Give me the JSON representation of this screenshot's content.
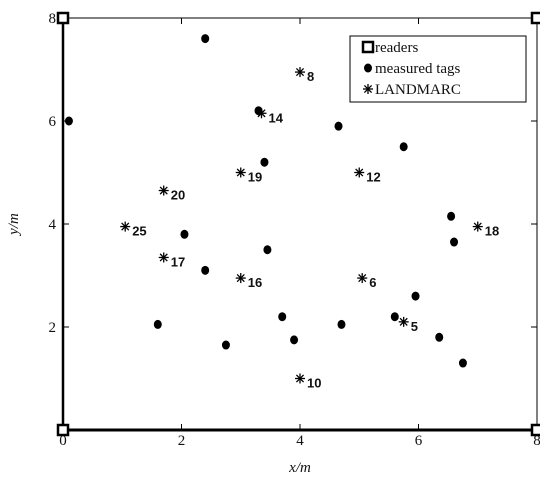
{
  "chart_data": {
    "type": "scatter",
    "xlabel": "x/m",
    "ylabel": "y/m",
    "xlim": [
      0,
      8
    ],
    "ylim": [
      0,
      8
    ],
    "xticks": [
      "0",
      "2",
      "4",
      "6",
      "8"
    ],
    "yticks": [
      "2",
      "4",
      "6",
      "8"
    ],
    "grid": false,
    "legend_position": "top-right",
    "legend": [
      "readers",
      "measured tags",
      "LANDMARC"
    ],
    "series": [
      {
        "name": "readers",
        "marker": "square",
        "points": [
          {
            "x": 0,
            "y": 8
          },
          {
            "x": 8,
            "y": 8
          },
          {
            "x": 0,
            "y": 0
          },
          {
            "x": 8,
            "y": 0
          }
        ]
      },
      {
        "name": "measured tags",
        "marker": "dot",
        "points": [
          {
            "x": 0.1,
            "y": 6.0
          },
          {
            "x": 2.4,
            "y": 7.6
          },
          {
            "x": 3.3,
            "y": 6.2
          },
          {
            "x": 4.65,
            "y": 5.9
          },
          {
            "x": 5.75,
            "y": 5.5
          },
          {
            "x": 3.4,
            "y": 5.2
          },
          {
            "x": 2.05,
            "y": 3.8
          },
          {
            "x": 3.45,
            "y": 3.5
          },
          {
            "x": 2.4,
            "y": 3.1
          },
          {
            "x": 6.55,
            "y": 4.15
          },
          {
            "x": 6.6,
            "y": 3.65
          },
          {
            "x": 5.95,
            "y": 2.6
          },
          {
            "x": 1.6,
            "y": 2.05
          },
          {
            "x": 3.7,
            "y": 2.2
          },
          {
            "x": 4.7,
            "y": 2.05
          },
          {
            "x": 5.6,
            "y": 2.2
          },
          {
            "x": 2.75,
            "y": 1.65
          },
          {
            "x": 3.9,
            "y": 1.75
          },
          {
            "x": 6.35,
            "y": 1.8
          },
          {
            "x": 6.75,
            "y": 1.3
          }
        ]
      },
      {
        "name": "LANDMARC",
        "marker": "asterisk",
        "points": [
          {
            "x": 4.0,
            "y": 6.95,
            "label": "8"
          },
          {
            "x": 3.35,
            "y": 6.15,
            "label": "14"
          },
          {
            "x": 3.0,
            "y": 5.0,
            "label": "19"
          },
          {
            "x": 5.0,
            "y": 5.0,
            "label": "12"
          },
          {
            "x": 1.7,
            "y": 4.65,
            "label": "20"
          },
          {
            "x": 1.05,
            "y": 3.95,
            "label": "25"
          },
          {
            "x": 7.0,
            "y": 3.95,
            "label": "18"
          },
          {
            "x": 1.7,
            "y": 3.35,
            "label": "17"
          },
          {
            "x": 3.0,
            "y": 2.95,
            "label": "16"
          },
          {
            "x": 5.05,
            "y": 2.95,
            "label": "6"
          },
          {
            "x": 5.75,
            "y": 2.1,
            "label": "5"
          },
          {
            "x": 4.0,
            "y": 1.0,
            "label": "10"
          }
        ]
      }
    ]
  }
}
